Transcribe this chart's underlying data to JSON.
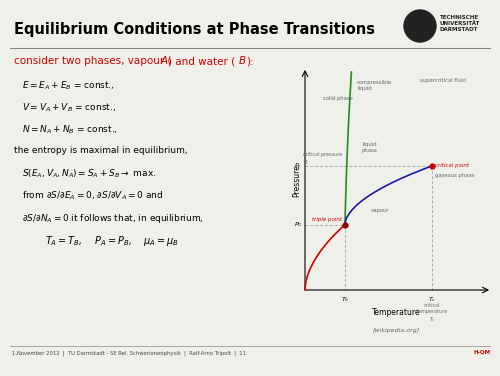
{
  "title": "Equilibrium Conditions at Phase Transitions",
  "subtitle_color": "#cc0000",
  "bg_color": "#f0f0eb",
  "header_bar_color": "#8b0000",
  "footer_text": "1.November 2012  |  TU Darmstadt - SE Rel. Schwerionenphysik  |  Ralf-Arno Tripolt  |  11",
  "footer_right": "H-QM",
  "eq_lines": [
    "$E = E_A + E_B$ = const.,",
    "$V = V_A + V_B$ = const.,",
    "$N = N_A + N_B$ = const.,",
    "the entropy is maximal in equilibrium,",
    "$S(E_A, V_A, N_A) = S_A + S_B \\rightarrow$ max.",
    "from $\\partial S/\\partial E_A = 0$, $\\partial S/\\partial V_A = 0$ and",
    "$\\partial S/\\partial N_A = 0$ it follows that, in equilibrium,"
  ],
  "last_line": "$T_A = T_B$,    $P_A = P_B$,    $\\mu_A = \\mu_B$",
  "tp": [
    0.22,
    0.3
  ],
  "cp": [
    0.7,
    0.57
  ],
  "green_color": "#228B22",
  "blue_color": "#1a1aaa",
  "red_color": "#cc0000",
  "dark_red": "#8b0000",
  "dash_color": "#aaaaaa",
  "label_color": "#666666",
  "logo_color": "#222222"
}
